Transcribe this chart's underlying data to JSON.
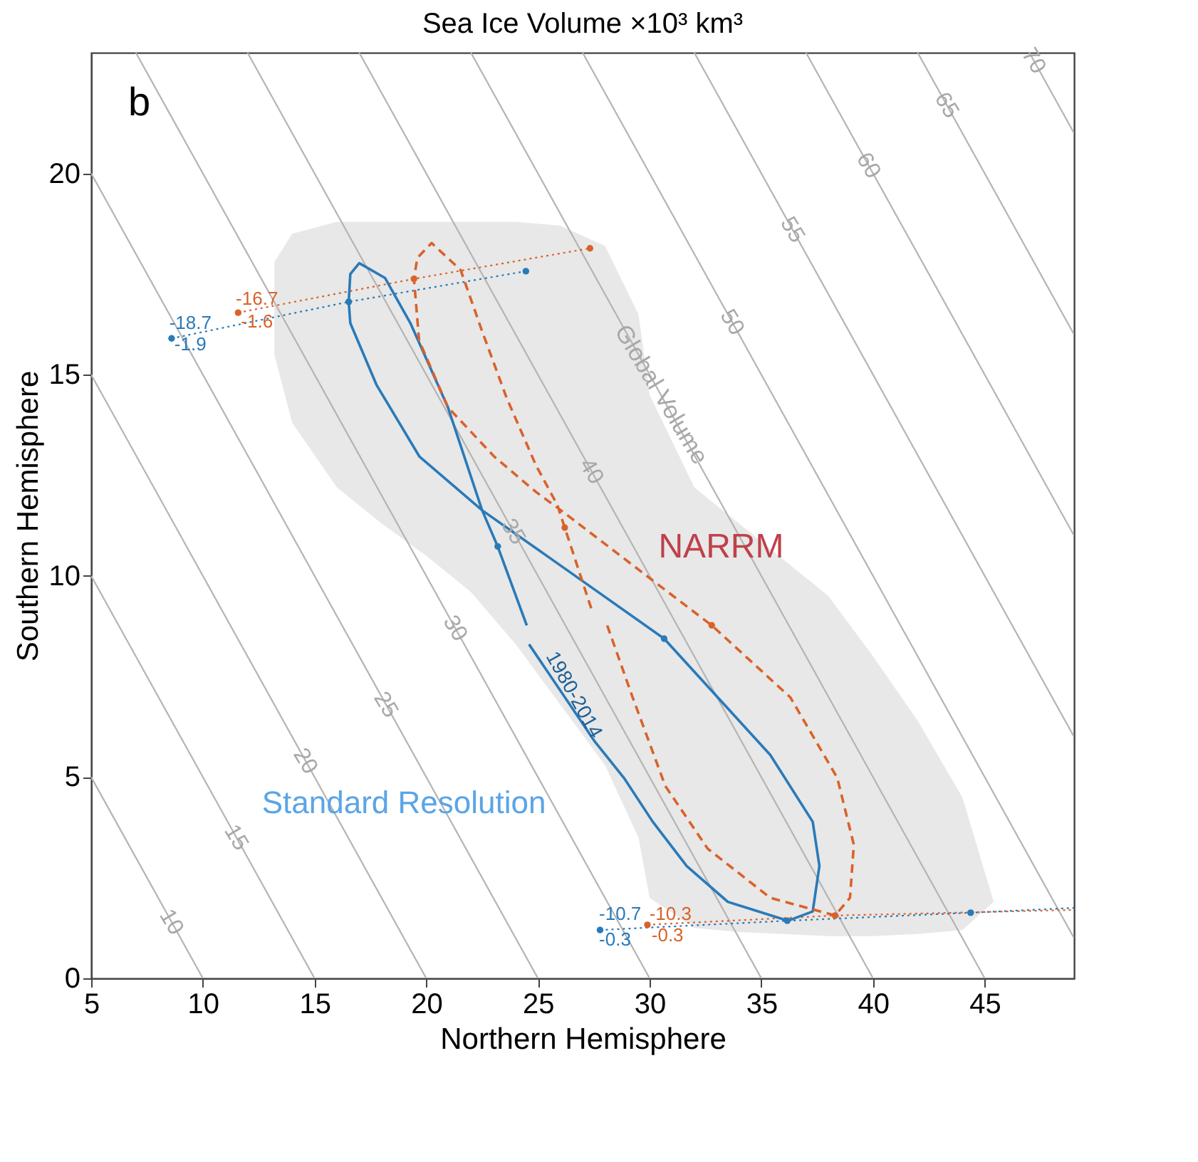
{
  "chart_data": {
    "type": "line",
    "title": "Sea Ice Volume ×10³ km³",
    "xlabel": "Northern Hemisphere",
    "ylabel": "Southern Hemisphere",
    "xlim": [
      5,
      49
    ],
    "ylim": [
      0,
      23
    ],
    "xticks": [
      5,
      10,
      15,
      20,
      25,
      30,
      35,
      40,
      45
    ],
    "yticks": [
      0,
      5,
      10,
      15,
      20
    ],
    "grid": false,
    "series": [
      {
        "type": "area",
        "color": "#e6e6e6",
        "x": [
          13.2,
          14,
          16,
          18,
          20,
          22,
          24,
          26,
          28,
          29.5,
          30,
          32,
          34,
          36,
          38,
          40,
          42,
          44,
          45.4
        ],
        "values": [
          null,
          null,
          null,
          null,
          null,
          null,
          null,
          null,
          null,
          null,
          null,
          null,
          null,
          null,
          null,
          null,
          null,
          null,
          null
        ],
        "lower": [
          15.5,
          13.8,
          12.2,
          11.3,
          10.5,
          9.6,
          8.3,
          6.8,
          5.3,
          3.5,
          2.0,
          1.25,
          1.15,
          1.1,
          1.05,
          1.05,
          1.1,
          1.2,
          1.9
        ],
        "upper": [
          17.8,
          18.5,
          18.8,
          18.8,
          18.8,
          18.8,
          18.8,
          18.7,
          18.2,
          16.5,
          14.5,
          12.2,
          11.3,
          10.4,
          9.5,
          8.0,
          6.4,
          4.5,
          1.9
        ]
      },
      {
        "color": "#b4b4b4",
        "line_style": "solid",
        "x": [
          5,
          10
        ],
        "values": [
          5,
          0
        ]
      },
      {
        "color": "#b4b4b4",
        "line_style": "solid",
        "x": [
          5,
          15
        ],
        "values": [
          10,
          0
        ]
      },
      {
        "color": "#b4b4b4",
        "line_style": "solid",
        "x": [
          5,
          20
        ],
        "values": [
          15,
          0
        ]
      },
      {
        "color": "#b4b4b4",
        "line_style": "solid",
        "x": [
          5,
          25
        ],
        "values": [
          20,
          0
        ]
      },
      {
        "color": "#b4b4b4",
        "line_style": "solid",
        "x": [
          7,
          30
        ],
        "values": [
          23,
          0
        ]
      },
      {
        "color": "#b4b4b4",
        "line_style": "solid",
        "x": [
          12,
          35
        ],
        "values": [
          23,
          0
        ]
      },
      {
        "color": "#b4b4b4",
        "line_style": "solid",
        "x": [
          17,
          40
        ],
        "values": [
          23,
          0
        ]
      },
      {
        "color": "#b4b4b4",
        "line_style": "solid",
        "x": [
          22,
          45
        ],
        "values": [
          23,
          0
        ]
      },
      {
        "color": "#b4b4b4",
        "line_style": "solid",
        "x": [
          27,
          49
        ],
        "values": [
          23,
          1
        ]
      },
      {
        "color": "#b4b4b4",
        "line_style": "solid",
        "x": [
          32,
          49
        ],
        "values": [
          23,
          6
        ]
      },
      {
        "color": "#b4b4b4",
        "line_style": "solid",
        "x": [
          37,
          49
        ],
        "values": [
          23,
          11
        ]
      },
      {
        "color": "#b4b4b4",
        "line_style": "solid",
        "x": [
          42,
          49
        ],
        "values": [
          23,
          16
        ]
      },
      {
        "color": "#b4b4b4",
        "line_style": "solid",
        "x": [
          47,
          49
        ],
        "values": [
          23,
          21
        ]
      },
      {
        "color": "#2a7ab8",
        "line_style": "dotted",
        "x": [
          8.6,
          16.53,
          24.46
        ],
        "values": [
          15.9,
          16.81,
          17.57
        ]
      },
      {
        "color": "#d9622b",
        "line_style": "dotted",
        "x": [
          11.58,
          19.45,
          27.33
        ],
        "values": [
          16.54,
          17.38,
          18.14
        ]
      },
      {
        "color": "#2a7ab8",
        "line_style": "dotted",
        "x": [
          27.78,
          36.16,
          44.37,
          49
        ],
        "values": [
          1.2,
          1.43,
          1.63,
          1.75
        ]
      },
      {
        "color": "#d9622b",
        "line_style": "dotted",
        "x": [
          29.9,
          38.3,
          49
        ],
        "values": [
          1.33,
          1.56,
          1.7
        ]
      },
      {
        "color": "#2a7ab8",
        "line_style": "solid",
        "x": [
          24.6,
          27.55,
          28.85,
          30.14,
          31.66,
          33.5,
          36.2,
          37.3,
          37.6,
          37.3,
          35.4,
          30.65,
          27.0,
          22.5,
          19.7,
          17.77,
          16.6,
          16.53,
          16.6,
          17.0,
          18.16,
          19.29,
          20.97,
          22.5,
          23.2,
          24.5
        ],
        "values": [
          8.3,
          5.88,
          4.98,
          3.89,
          2.79,
          1.9,
          1.43,
          1.66,
          2.79,
          3.89,
          5.55,
          8.44,
          9.87,
          11.63,
          12.96,
          14.75,
          16.28,
          16.81,
          17.5,
          17.77,
          17.4,
          16.28,
          14.19,
          11.63,
          10.73,
          8.77
        ]
      },
      {
        "color": "#d9622b",
        "line_style": "dashed",
        "x": [
          28.1,
          29.24,
          30.7,
          32.6,
          35.4,
          38.3,
          38.97,
          39.14,
          38.4,
          36.3,
          32.78,
          29.4,
          26.03,
          24.9,
          23.05,
          20.97,
          19.68,
          19.45,
          19.6,
          20.24,
          21.54,
          22.5,
          23.6,
          24.9,
          25.87,
          26.2,
          27.44
        ],
        "values": [
          8.77,
          6.98,
          4.78,
          3.22,
          2.0,
          1.56,
          2.0,
          3.32,
          4.98,
          6.98,
          8.77,
          10.2,
          11.63,
          12.09,
          12.96,
          14.19,
          15.85,
          17.38,
          17.9,
          18.27,
          17.6,
          16.08,
          14.42,
          12.76,
          11.76,
          11.2,
          9.1
        ]
      },
      {
        "type": "scatter",
        "color": "#2a7ab8",
        "marker": "circle",
        "x": [
          8.6,
          16.53,
          24.46,
          27.78,
          36.16,
          44.37,
          23.2,
          30.65
        ],
        "values": [
          15.9,
          16.81,
          17.57,
          1.2,
          1.43,
          1.63,
          10.73,
          8.44
        ]
      },
      {
        "type": "scatter",
        "color": "#d9622b",
        "marker": "circle",
        "x": [
          11.58,
          19.45,
          27.33,
          29.9,
          38.3,
          26.2,
          32.78
        ],
        "values": [
          16.54,
          17.38,
          18.14,
          1.33,
          1.56,
          11.2,
          8.77
        ]
      }
    ],
    "annotations": [
      "b",
      {
        "text": "Global Volume",
        "x": 30.5,
        "y": 14.5
      },
      "NARRM",
      "Standard Resolution",
      "1980-2014",
      "-18.7",
      "-1.9",
      "-16.7",
      "-1.6",
      "-10.7",
      "-0.3",
      "-10.3",
      "-0.3",
      {
        "text": "10",
        "x": 8.6,
        "y": 1.4
      },
      {
        "text": "15",
        "x": 11.5,
        "y": 3.5
      },
      {
        "text": "20",
        "x": 14.6,
        "y": 5.4
      },
      {
        "text": "25",
        "x": 18.2,
        "y": 6.8
      },
      {
        "text": "30",
        "x": 21.3,
        "y": 8.7
      },
      {
        "text": "35",
        "x": 23.9,
        "y": 11.1
      },
      {
        "text": "40",
        "x": 27.4,
        "y": 12.6
      },
      {
        "text": "50",
        "x": 33.7,
        "y": 16.3
      },
      {
        "text": "55",
        "x": 36.4,
        "y": 18.6
      },
      {
        "text": "60",
        "x": 39.8,
        "y": 20.2
      },
      {
        "text": "65",
        "x": 43.3,
        "y": 21.7
      },
      {
        "text": "70",
        "x": 47.2,
        "y": 22.8
      }
    ]
  }
}
